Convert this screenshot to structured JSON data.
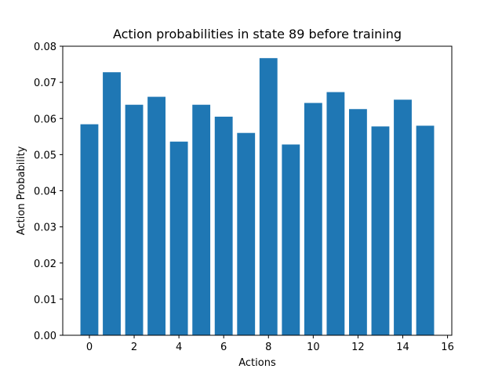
{
  "chart_data": {
    "type": "bar",
    "title": "Action probabilities in state 89 before training",
    "xlabel": "Actions",
    "ylabel": "Action Probability",
    "x": [
      0,
      1,
      2,
      3,
      4,
      5,
      6,
      7,
      8,
      9,
      10,
      11,
      12,
      13,
      14,
      15
    ],
    "values": [
      0.0584,
      0.0728,
      0.0638,
      0.066,
      0.0536,
      0.0638,
      0.0605,
      0.056,
      0.0767,
      0.0528,
      0.0643,
      0.0673,
      0.0626,
      0.0578,
      0.0652,
      0.058
    ],
    "xlim": [
      -1.19,
      16.19
    ],
    "ylim": [
      0,
      0.08
    ],
    "xticks": [
      0,
      2,
      4,
      6,
      8,
      10,
      12,
      14,
      16
    ],
    "yticks": [
      0.0,
      0.01,
      0.02,
      0.03,
      0.04,
      0.05,
      0.06,
      0.07,
      0.08
    ],
    "bar_color": "#1f77b4",
    "grid": false,
    "legend": false
  }
}
